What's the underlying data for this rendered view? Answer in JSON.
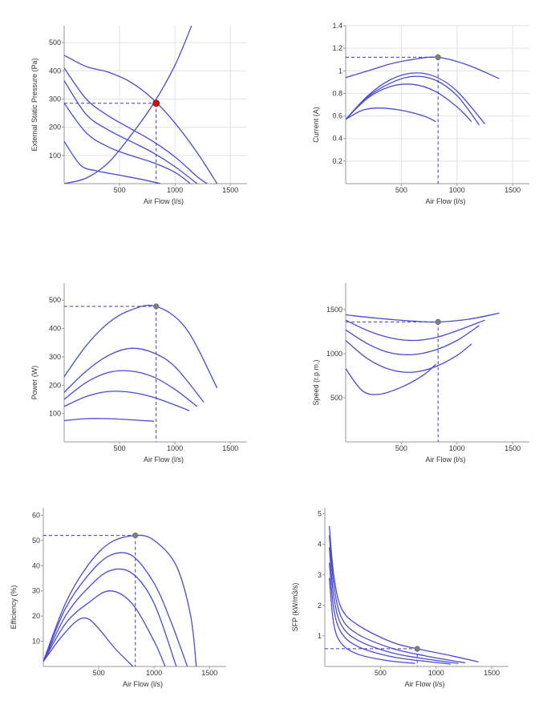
{
  "colors": {
    "curve": "#4a4ad2",
    "grid": "#e2e2e2",
    "axis": "#9a9a9a",
    "guide": "#3b3bbf",
    "op_red": "#d40f14",
    "op_grey": "#808080"
  },
  "chart_data": [
    {
      "id": "pressure",
      "type": "line",
      "xlabel": "Air Flow (l/s)",
      "ylabel": "External Static Pressure (Pa)",
      "xlim": [
        0,
        1650
      ],
      "ylim": [
        0,
        560
      ],
      "xticks": [
        500,
        1000,
        1500
      ],
      "yticks": [
        100,
        200,
        300,
        400,
        500
      ],
      "grid": true,
      "operating_point": {
        "x": 830,
        "y": 285,
        "marker": "red"
      },
      "series": [
        {
          "x": [
            0,
            200,
            400,
            600,
            800,
            1000,
            1200,
            1380
          ],
          "y": [
            455,
            415,
            395,
            360,
            300,
            215,
            110,
            0
          ]
        },
        {
          "x": [
            0,
            200,
            400,
            600,
            800,
            1000,
            1200,
            1290
          ],
          "y": [
            410,
            300,
            240,
            195,
            150,
            95,
            25,
            0
          ]
        },
        {
          "x": [
            0,
            200,
            400,
            600,
            800,
            1000,
            1200
          ],
          "y": [
            365,
            245,
            190,
            150,
            110,
            60,
            0
          ]
        },
        {
          "x": [
            0,
            200,
            400,
            600,
            800,
            1000,
            1140
          ],
          "y": [
            285,
            180,
            130,
            100,
            75,
            40,
            0
          ]
        },
        {
          "x": [
            0,
            150,
            300,
            500,
            700,
            870
          ],
          "y": [
            150,
            65,
            45,
            30,
            15,
            0
          ]
        },
        {
          "x": [
            0,
            200,
            400,
            600,
            800,
            1000,
            1150
          ],
          "y": [
            0,
            20,
            75,
            170,
            280,
            420,
            560
          ]
        }
      ]
    },
    {
      "id": "current",
      "type": "line",
      "xlabel": "Air Flow (l/s)",
      "ylabel": "Current (A)",
      "xlim": [
        0,
        1650
      ],
      "ylim": [
        0,
        1.4
      ],
      "xticks": [
        500,
        1000,
        1500
      ],
      "yticks": [
        0.2,
        0.4,
        0.6,
        0.8,
        1,
        1.2,
        1.4
      ],
      "grid": true,
      "operating_point": {
        "x": 830,
        "y": 1.12,
        "marker": "grey"
      },
      "series": [
        {
          "x": [
            0,
            200,
            400,
            600,
            830,
            1100,
            1380
          ],
          "y": [
            0.94,
            1.0,
            1.06,
            1.1,
            1.12,
            1.05,
            0.93
          ]
        },
        {
          "x": [
            0,
            200,
            400,
            600,
            800,
            1000,
            1250
          ],
          "y": [
            0.57,
            0.78,
            0.92,
            0.98,
            0.95,
            0.82,
            0.53
          ]
        },
        {
          "x": [
            0,
            200,
            400,
            600,
            800,
            1000,
            1200
          ],
          "y": [
            0.57,
            0.77,
            0.89,
            0.95,
            0.92,
            0.78,
            0.52
          ]
        },
        {
          "x": [
            0,
            200,
            400,
            600,
            800,
            1000,
            1130
          ],
          "y": [
            0.57,
            0.76,
            0.86,
            0.88,
            0.82,
            0.68,
            0.55
          ]
        },
        {
          "x": [
            0,
            150,
            300,
            500,
            700,
            810
          ],
          "y": [
            0.57,
            0.65,
            0.67,
            0.65,
            0.6,
            0.55
          ]
        }
      ]
    },
    {
      "id": "power",
      "type": "line",
      "xlabel": "Air Flow (l/s)",
      "ylabel": "Power (W)",
      "xlim": [
        0,
        1650
      ],
      "ylim": [
        0,
        560
      ],
      "xticks": [
        500,
        1000,
        1500
      ],
      "yticks": [
        100,
        200,
        300,
        400,
        500
      ],
      "grid": false,
      "operating_point": {
        "x": 830,
        "y": 478,
        "marker": "grey"
      },
      "series": [
        {
          "x": [
            0,
            200,
            400,
            600,
            830,
            1100,
            1380
          ],
          "y": [
            230,
            340,
            420,
            465,
            478,
            400,
            190
          ]
        },
        {
          "x": [
            0,
            200,
            400,
            600,
            800,
            1000,
            1260
          ],
          "y": [
            175,
            250,
            305,
            330,
            315,
            265,
            140
          ]
        },
        {
          "x": [
            0,
            200,
            400,
            600,
            800,
            1000,
            1200
          ],
          "y": [
            150,
            210,
            245,
            250,
            230,
            185,
            125
          ]
        },
        {
          "x": [
            0,
            200,
            400,
            600,
            800,
            1000,
            1130
          ],
          "y": [
            125,
            160,
            178,
            175,
            158,
            130,
            110
          ]
        },
        {
          "x": [
            0,
            200,
            400,
            600,
            810
          ],
          "y": [
            75,
            82,
            82,
            78,
            73
          ]
        }
      ]
    },
    {
      "id": "speed",
      "type": "line",
      "xlabel": "Air Flow (l/s)",
      "ylabel": "Speed (r.p.m.)",
      "xlim": [
        0,
        1650
      ],
      "ylim": [
        0,
        1800
      ],
      "xticks": [
        500,
        1000,
        1500
      ],
      "yticks": [
        500,
        1000,
        1500
      ],
      "grid": false,
      "operating_point": {
        "x": 830,
        "y": 1360,
        "marker": "grey"
      },
      "series": [
        {
          "x": [
            0,
            300,
            600,
            830,
            1100,
            1380
          ],
          "y": [
            1440,
            1400,
            1370,
            1360,
            1390,
            1460
          ]
        },
        {
          "x": [
            0,
            200,
            400,
            600,
            800,
            1000,
            1250
          ],
          "y": [
            1380,
            1260,
            1180,
            1150,
            1180,
            1260,
            1380
          ]
        },
        {
          "x": [
            0,
            200,
            400,
            600,
            800,
            1000,
            1200
          ],
          "y": [
            1270,
            1110,
            1010,
            990,
            1040,
            1150,
            1320
          ]
        },
        {
          "x": [
            0,
            200,
            400,
            600,
            800,
            1000,
            1130
          ],
          "y": [
            1150,
            940,
            820,
            790,
            850,
            980,
            1110
          ]
        },
        {
          "x": [
            0,
            150,
            300,
            500,
            700,
            810
          ],
          "y": [
            830,
            580,
            540,
            620,
            760,
            880
          ]
        }
      ]
    },
    {
      "id": "efficiency",
      "type": "line",
      "xlabel": "Air Flow (l/s)",
      "ylabel": "Efficiency (%)",
      "xlim": [
        0,
        1650
      ],
      "ylim": [
        0,
        63
      ],
      "xticks": [
        500,
        1000,
        1500
      ],
      "yticks": [
        10,
        20,
        30,
        40,
        50,
        60
      ],
      "grid": false,
      "operating_point": {
        "x": 830,
        "y": 52,
        "marker": "grey"
      },
      "series": [
        {
          "x": [
            0,
            200,
            400,
            600,
            830,
            1000,
            1200,
            1330,
            1380
          ],
          "y": [
            2,
            25,
            40,
            49,
            52,
            50,
            40,
            20,
            0
          ]
        },
        {
          "x": [
            0,
            200,
            400,
            600,
            800,
            1000,
            1150,
            1300
          ],
          "y": [
            2,
            23,
            36,
            44,
            44,
            33,
            18,
            0
          ]
        },
        {
          "x": [
            0,
            200,
            400,
            600,
            800,
            1000,
            1200
          ],
          "y": [
            2,
            20,
            31,
            38,
            37,
            25,
            0
          ]
        },
        {
          "x": [
            0,
            200,
            400,
            600,
            800,
            1000,
            1100
          ],
          "y": [
            2,
            17,
            25,
            30,
            25,
            10,
            0
          ]
        },
        {
          "x": [
            0,
            150,
            300,
            400,
            500,
            650,
            810
          ],
          "y": [
            2,
            11,
            18,
            19,
            15,
            7,
            0
          ]
        }
      ]
    },
    {
      "id": "sfp",
      "type": "line",
      "xlabel": "Air Flow (l/s)",
      "ylabel": "SFP (kW/m3/s)",
      "xlim": [
        0,
        1650
      ],
      "ylim": [
        0,
        5.2
      ],
      "xticks": [
        500,
        1000,
        1500
      ],
      "yticks": [
        1,
        2,
        3,
        4,
        5
      ],
      "grid": false,
      "operating_point": {
        "x": 830,
        "y": 0.58,
        "marker": "grey"
      },
      "series": [
        {
          "x": [
            40,
            80,
            150,
            300,
            600,
            830,
            1100,
            1380
          ],
          "y": [
            4.6,
            3.0,
            1.9,
            1.35,
            0.8,
            0.58,
            0.38,
            0.15
          ]
        },
        {
          "x": [
            40,
            80,
            150,
            300,
            600,
            900,
            1260
          ],
          "y": [
            4.3,
            2.7,
            1.6,
            1.05,
            0.6,
            0.35,
            0.12
          ]
        },
        {
          "x": [
            40,
            80,
            150,
            300,
            600,
            900,
            1200
          ],
          "y": [
            3.9,
            2.3,
            1.35,
            0.85,
            0.45,
            0.25,
            0.1
          ]
        },
        {
          "x": [
            40,
            80,
            150,
            300,
            600,
            900,
            1130
          ],
          "y": [
            3.4,
            1.9,
            1.1,
            0.65,
            0.32,
            0.17,
            0.08
          ]
        },
        {
          "x": [
            40,
            80,
            150,
            300,
            550,
            810
          ],
          "y": [
            2.9,
            1.4,
            0.75,
            0.4,
            0.2,
            0.1
          ]
        }
      ]
    }
  ]
}
